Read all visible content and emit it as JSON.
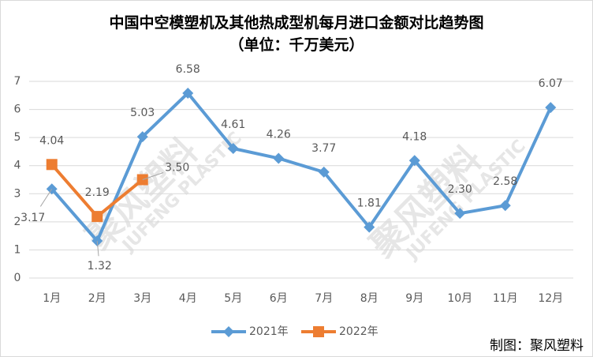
{
  "chart_data": {
    "type": "line",
    "title": "中国中空模塑机及其他热成型机每月进口金额对比趋势图",
    "subtitle": "（单位：千万美元）",
    "footer": "制图：聚风塑料",
    "watermark": [
      "聚风塑料",
      "JUFENG PLASTIC"
    ],
    "categories": [
      "1月",
      "2月",
      "3月",
      "4月",
      "5月",
      "6月",
      "7月",
      "8月",
      "9月",
      "10月",
      "11月",
      "12月"
    ],
    "series": [
      {
        "name": "2021年",
        "color": "#5b9bd5",
        "marker": "diamond",
        "values": [
          3.17,
          1.32,
          5.03,
          6.58,
          4.61,
          4.26,
          3.77,
          1.81,
          4.18,
          2.3,
          2.58,
          6.07
        ],
        "value_labels": [
          "3.17",
          "1.32",
          "5.03",
          "6.58",
          "4.61",
          "4.26",
          "3.77",
          "1.81",
          "4.18",
          "2.30",
          "2.58",
          "6.07"
        ]
      },
      {
        "name": "2022年",
        "color": "#ed7d31",
        "marker": "square",
        "values": [
          4.04,
          2.19,
          3.5,
          null,
          null,
          null,
          null,
          null,
          null,
          null,
          null,
          null
        ],
        "value_labels": [
          "4.04",
          "2.19",
          "3.50",
          null,
          null,
          null,
          null,
          null,
          null,
          null,
          null,
          null
        ]
      }
    ],
    "ylim": [
      0,
      7
    ],
    "yticks": [
      0,
      1,
      2,
      3,
      4,
      5,
      6,
      7
    ],
    "grid": true,
    "legend": "bottom"
  }
}
